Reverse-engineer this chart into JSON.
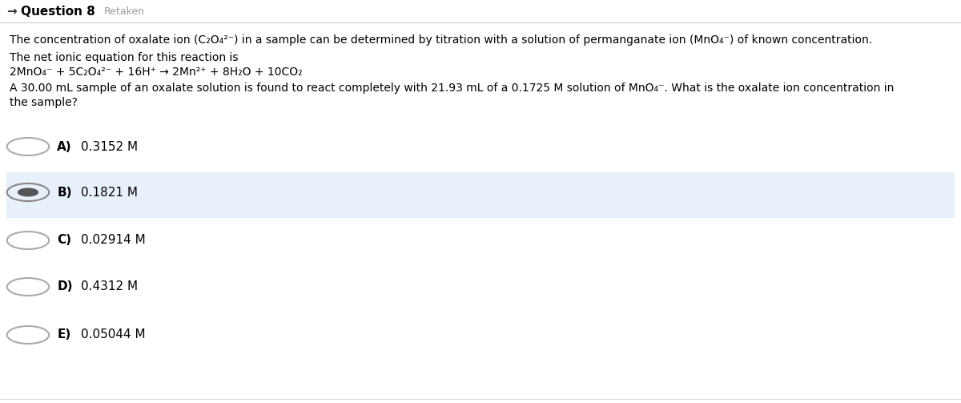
{
  "title_arrow": "→",
  "title_question": "Question 8",
  "title_retaken": "Retaken",
  "bg_color": "#ffffff",
  "header_line_color": "#cccccc",
  "selected_bg_color": "#e8f0fa",
  "text_color": "#000000",
  "radio_border_color": "#aaaaaa",
  "selected_radio_outer_color": "#888888",
  "selected_radio_inner_color": "#555555",
  "line1": "The concentration of oxalate ion (C₂O₄²⁻) in a sample can be determined by titration with a solution of permanganate ion (MnO₄⁻) of known concentration.",
  "line2": "The net ionic equation for this reaction is",
  "line3": "2MnO₄⁻ + 5C₂O₄²⁻ + 16H⁺ → 2Mn²⁺ + 8H₂O + 10CO₂",
  "line4": "A 30.00 mL sample of an oxalate solution is found to react completely with 21.93 mL of a 0.1725 M solution of MnO₄⁻. What is the oxalate ion concentration in",
  "line5": "the sample?",
  "choices": [
    {
      "label": "A)",
      "text": "0.3152 M",
      "selected": false
    },
    {
      "label": "B)",
      "text": "0.1821 M",
      "selected": true
    },
    {
      "label": "C)",
      "text": "0.02914 M",
      "selected": false
    },
    {
      "label": "D)",
      "text": "0.4312 M",
      "selected": false
    },
    {
      "label": "E)",
      "text": "0.05044 M",
      "selected": false
    }
  ],
  "font_size_title": 11,
  "font_size_body": 10,
  "font_size_choices": 11,
  "title_arrow_color": "#333333",
  "retaken_color": "#999999"
}
